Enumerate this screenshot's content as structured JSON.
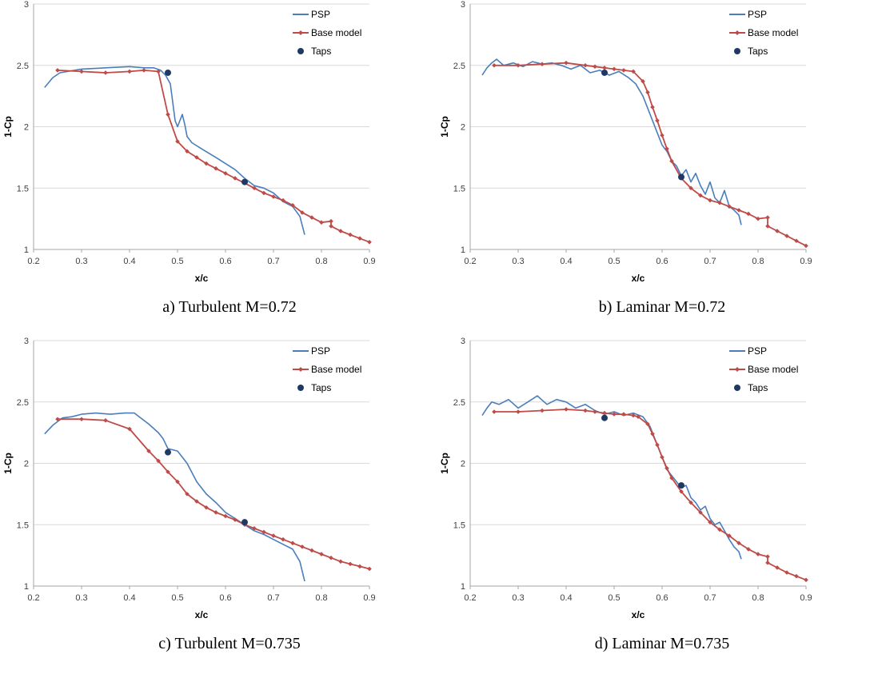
{
  "colors": {
    "psp": "#4a7ebb",
    "base": "#be4b48",
    "taps": "#1f3864",
    "grid": "#d9d9d9",
    "axis": "#a6a6a6"
  },
  "chart_data": [
    {
      "type": "line",
      "caption": "a) Turbulent M=0.72",
      "xlabel": "x/c",
      "ylabel": "1-Cp",
      "xlim": [
        0.2,
        0.9
      ],
      "ylim": [
        1,
        3
      ],
      "x_ticks": [
        "0.2",
        "0.3",
        "0.4",
        "0.5",
        "0.6",
        "0.7",
        "0.8",
        "0.9"
      ],
      "y_ticks": [
        "1",
        "1.5",
        "2",
        "2.5",
        "3"
      ],
      "grid": true,
      "legend": "top-right",
      "series": [
        {
          "name": "PSP",
          "kind": "line",
          "x": [
            0.223,
            0.24,
            0.255,
            0.27,
            0.3,
            0.35,
            0.4,
            0.43,
            0.45,
            0.465,
            0.475,
            0.485,
            0.49,
            0.495,
            0.5,
            0.505,
            0.51,
            0.515,
            0.52,
            0.53,
            0.55,
            0.58,
            0.6,
            0.62,
            0.64,
            0.66,
            0.68,
            0.7,
            0.72,
            0.74,
            0.755,
            0.765
          ],
          "y": [
            2.32,
            2.4,
            2.44,
            2.45,
            2.47,
            2.48,
            2.49,
            2.48,
            2.48,
            2.46,
            2.42,
            2.35,
            2.2,
            2.05,
            2.0,
            2.05,
            2.1,
            2.02,
            1.92,
            1.87,
            1.82,
            1.75,
            1.7,
            1.65,
            1.58,
            1.52,
            1.5,
            1.46,
            1.39,
            1.35,
            1.27,
            1.12
          ]
        },
        {
          "name": "Base model",
          "kind": "line-marker",
          "x": [
            0.25,
            0.3,
            0.35,
            0.4,
            0.43,
            0.46,
            0.48,
            0.5,
            0.52,
            0.54,
            0.56,
            0.58,
            0.6,
            0.62,
            0.64,
            0.66,
            0.68,
            0.7,
            0.72,
            0.74,
            0.76,
            0.78,
            0.8,
            0.82,
            0.82,
            0.84,
            0.86,
            0.88,
            0.9
          ],
          "y": [
            2.46,
            2.45,
            2.44,
            2.45,
            2.46,
            2.45,
            2.1,
            1.88,
            1.8,
            1.75,
            1.7,
            1.66,
            1.62,
            1.58,
            1.54,
            1.5,
            1.46,
            1.43,
            1.4,
            1.36,
            1.3,
            1.26,
            1.22,
            1.23,
            1.19,
            1.15,
            1.12,
            1.09,
            1.06
          ]
        },
        {
          "name": "Taps",
          "kind": "scatter",
          "x": [
            0.48,
            0.64
          ],
          "y": [
            2.44,
            1.55
          ]
        }
      ]
    },
    {
      "type": "line",
      "caption": "b) Laminar M=0.72",
      "xlabel": "x/c",
      "ylabel": "1-Cp",
      "xlim": [
        0.2,
        0.9
      ],
      "ylim": [
        1,
        3
      ],
      "x_ticks": [
        "0.2",
        "0.3",
        "0.4",
        "0.5",
        "0.6",
        "0.7",
        "0.8",
        "0.9"
      ],
      "y_ticks": [
        "1",
        "1.5",
        "2",
        "2.5",
        "3"
      ],
      "grid": true,
      "legend": "top-right",
      "series": [
        {
          "name": "PSP",
          "kind": "line",
          "x": [
            0.225,
            0.235,
            0.245,
            0.255,
            0.27,
            0.29,
            0.31,
            0.33,
            0.35,
            0.37,
            0.39,
            0.41,
            0.43,
            0.45,
            0.47,
            0.49,
            0.51,
            0.53,
            0.545,
            0.56,
            0.575,
            0.59,
            0.6,
            0.61,
            0.62,
            0.63,
            0.64,
            0.65,
            0.66,
            0.67,
            0.68,
            0.69,
            0.7,
            0.71,
            0.72,
            0.73,
            0.74,
            0.75,
            0.76,
            0.765
          ],
          "y": [
            2.42,
            2.48,
            2.52,
            2.55,
            2.5,
            2.52,
            2.49,
            2.53,
            2.51,
            2.52,
            2.5,
            2.47,
            2.5,
            2.44,
            2.46,
            2.42,
            2.45,
            2.4,
            2.35,
            2.25,
            2.1,
            1.95,
            1.85,
            1.8,
            1.72,
            1.68,
            1.6,
            1.65,
            1.55,
            1.62,
            1.52,
            1.45,
            1.55,
            1.42,
            1.38,
            1.48,
            1.35,
            1.32,
            1.28,
            1.2
          ]
        },
        {
          "name": "Base model",
          "kind": "line-marker",
          "x": [
            0.25,
            0.3,
            0.35,
            0.4,
            0.44,
            0.46,
            0.48,
            0.5,
            0.52,
            0.54,
            0.56,
            0.57,
            0.58,
            0.59,
            0.6,
            0.61,
            0.62,
            0.64,
            0.66,
            0.68,
            0.7,
            0.72,
            0.74,
            0.76,
            0.78,
            0.8,
            0.82,
            0.82,
            0.84,
            0.86,
            0.88,
            0.9
          ],
          "y": [
            2.5,
            2.5,
            2.51,
            2.52,
            2.5,
            2.49,
            2.48,
            2.47,
            2.46,
            2.45,
            2.37,
            2.28,
            2.16,
            2.05,
            1.93,
            1.82,
            1.72,
            1.58,
            1.5,
            1.44,
            1.4,
            1.38,
            1.35,
            1.32,
            1.29,
            1.25,
            1.26,
            1.19,
            1.15,
            1.11,
            1.07,
            1.03
          ]
        },
        {
          "name": "Taps",
          "kind": "scatter",
          "x": [
            0.48,
            0.64
          ],
          "y": [
            2.44,
            1.59
          ]
        }
      ]
    },
    {
      "type": "line",
      "caption": "c) Turbulent M=0.735",
      "xlabel": "x/c",
      "ylabel": "1-Cp",
      "xlim": [
        0.2,
        0.9
      ],
      "ylim": [
        1,
        3
      ],
      "x_ticks": [
        "0.2",
        "0.3",
        "0.4",
        "0.5",
        "0.6",
        "0.7",
        "0.8",
        "0.9"
      ],
      "y_ticks": [
        "1",
        "1.5",
        "2",
        "2.5",
        "3"
      ],
      "grid": true,
      "legend": "top-right",
      "series": [
        {
          "name": "PSP",
          "kind": "line",
          "x": [
            0.223,
            0.24,
            0.26,
            0.28,
            0.3,
            0.33,
            0.36,
            0.39,
            0.41,
            0.42,
            0.44,
            0.46,
            0.47,
            0.48,
            0.5,
            0.52,
            0.54,
            0.56,
            0.58,
            0.6,
            0.62,
            0.64,
            0.66,
            0.68,
            0.7,
            0.72,
            0.74,
            0.755,
            0.765
          ],
          "y": [
            2.24,
            2.31,
            2.37,
            2.38,
            2.4,
            2.41,
            2.4,
            2.41,
            2.41,
            2.38,
            2.32,
            2.25,
            2.2,
            2.12,
            2.1,
            2.0,
            1.85,
            1.75,
            1.68,
            1.6,
            1.55,
            1.5,
            1.45,
            1.42,
            1.38,
            1.34,
            1.3,
            1.2,
            1.04
          ]
        },
        {
          "name": "Base model",
          "kind": "line-marker",
          "x": [
            0.25,
            0.3,
            0.35,
            0.4,
            0.44,
            0.46,
            0.48,
            0.5,
            0.52,
            0.54,
            0.56,
            0.58,
            0.6,
            0.62,
            0.64,
            0.66,
            0.68,
            0.7,
            0.72,
            0.74,
            0.76,
            0.78,
            0.8,
            0.82,
            0.84,
            0.86,
            0.88,
            0.9
          ],
          "y": [
            2.36,
            2.36,
            2.35,
            2.28,
            2.1,
            2.02,
            1.93,
            1.85,
            1.75,
            1.69,
            1.64,
            1.6,
            1.57,
            1.54,
            1.5,
            1.47,
            1.44,
            1.41,
            1.38,
            1.35,
            1.32,
            1.29,
            1.26,
            1.23,
            1.2,
            1.18,
            1.16,
            1.14
          ]
        },
        {
          "name": "Taps",
          "kind": "scatter",
          "x": [
            0.48,
            0.64
          ],
          "y": [
            2.09,
            1.52
          ]
        }
      ]
    },
    {
      "type": "line",
      "caption": "d) Laminar M=0.735",
      "xlabel": "x/c",
      "ylabel": "1-Cp",
      "xlim": [
        0.2,
        0.9
      ],
      "ylim": [
        1,
        3
      ],
      "x_ticks": [
        "0.2",
        "0.3",
        "0.4",
        "0.5",
        "0.6",
        "0.7",
        "0.8",
        "0.9"
      ],
      "y_ticks": [
        "1",
        "1.5",
        "2",
        "2.5",
        "3"
      ],
      "grid": true,
      "legend": "top-right",
      "series": [
        {
          "name": "PSP",
          "kind": "line",
          "x": [
            0.225,
            0.235,
            0.245,
            0.26,
            0.28,
            0.3,
            0.32,
            0.34,
            0.36,
            0.38,
            0.4,
            0.42,
            0.44,
            0.46,
            0.48,
            0.5,
            0.52,
            0.54,
            0.56,
            0.575,
            0.59,
            0.6,
            0.61,
            0.62,
            0.63,
            0.64,
            0.65,
            0.66,
            0.67,
            0.68,
            0.69,
            0.7,
            0.71,
            0.72,
            0.73,
            0.74,
            0.75,
            0.76,
            0.765
          ],
          "y": [
            2.39,
            2.45,
            2.5,
            2.48,
            2.52,
            2.45,
            2.5,
            2.55,
            2.48,
            2.52,
            2.5,
            2.45,
            2.48,
            2.43,
            2.4,
            2.42,
            2.39,
            2.41,
            2.38,
            2.3,
            2.15,
            2.05,
            1.95,
            1.9,
            1.85,
            1.8,
            1.82,
            1.72,
            1.68,
            1.62,
            1.65,
            1.55,
            1.5,
            1.52,
            1.45,
            1.38,
            1.32,
            1.28,
            1.22
          ]
        },
        {
          "name": "Base model",
          "kind": "line-marker",
          "x": [
            0.25,
            0.3,
            0.35,
            0.4,
            0.44,
            0.46,
            0.48,
            0.5,
            0.52,
            0.54,
            0.55,
            0.57,
            0.58,
            0.59,
            0.6,
            0.61,
            0.62,
            0.64,
            0.66,
            0.68,
            0.7,
            0.72,
            0.74,
            0.76,
            0.78,
            0.8,
            0.82,
            0.82,
            0.84,
            0.86,
            0.88,
            0.9
          ],
          "y": [
            2.42,
            2.42,
            2.43,
            2.44,
            2.43,
            2.42,
            2.41,
            2.4,
            2.4,
            2.39,
            2.38,
            2.32,
            2.24,
            2.15,
            2.05,
            1.96,
            1.88,
            1.77,
            1.68,
            1.6,
            1.52,
            1.46,
            1.41,
            1.35,
            1.3,
            1.26,
            1.24,
            1.19,
            1.15,
            1.11,
            1.08,
            1.05
          ]
        },
        {
          "name": "Taps",
          "kind": "scatter",
          "x": [
            0.48,
            0.64
          ],
          "y": [
            2.37,
            1.82
          ]
        }
      ]
    }
  ]
}
